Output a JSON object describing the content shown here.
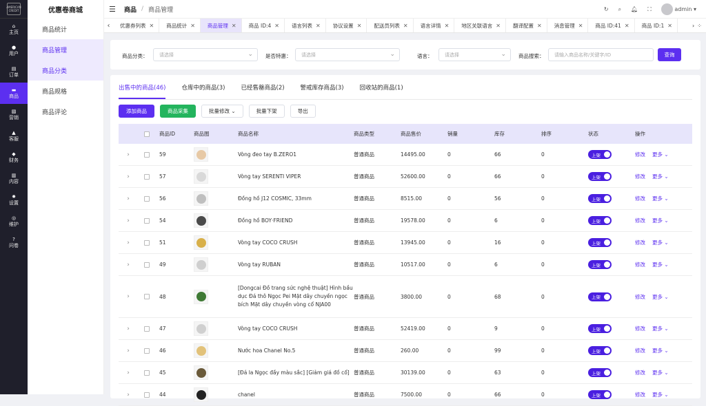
{
  "rail": {
    "logo_text": "AMERICAN CREDIT",
    "items": [
      {
        "icon": "⌂",
        "label": "主页"
      },
      {
        "icon": "●",
        "label": "用户"
      },
      {
        "icon": "▤",
        "label": "订单"
      },
      {
        "icon": "▬",
        "label": "商品"
      },
      {
        "icon": "▧",
        "label": "营销"
      },
      {
        "icon": "▲",
        "label": "客服"
      },
      {
        "icon": "◆",
        "label": "财务"
      },
      {
        "icon": "▥",
        "label": "内容"
      },
      {
        "icon": "✹",
        "label": "设置"
      },
      {
        "icon": "◎",
        "label": "维护"
      },
      {
        "icon": "?",
        "label": "问卷"
      }
    ]
  },
  "sub": {
    "brand": "优惠卷商城",
    "items": [
      {
        "label": "商品统计"
      },
      {
        "label": "商品管理"
      },
      {
        "label": "商品分类"
      },
      {
        "label": "商品规格"
      },
      {
        "label": "商品评论"
      }
    ]
  },
  "header": {
    "crumb": "商品",
    "crumb2": "商品管理",
    "user": "admin"
  },
  "tabs": [
    {
      "label": "优惠券列表"
    },
    {
      "label": "商品统计"
    },
    {
      "label": "商品管理"
    },
    {
      "label": "商品 ID:4"
    },
    {
      "label": "语言列表"
    },
    {
      "label": "协议设置"
    },
    {
      "label": "配送员列表"
    },
    {
      "label": "语言详情"
    },
    {
      "label": "地区关联语言"
    },
    {
      "label": "翻译配置"
    },
    {
      "label": "消息管理"
    },
    {
      "label": "商品 ID:41"
    },
    {
      "label": "商品 ID:1"
    }
  ],
  "filter": {
    "cat_label": "商品分类：",
    "cat_ph": "请选择",
    "special_label": "是否特惠：",
    "special_ph": "请选择",
    "lang_label": "语言：",
    "lang_ph": "请选择",
    "search_label": "商品搜索：",
    "search_ph": "请输入商品名称/关键字/ID",
    "query": "查询"
  },
  "status_tabs": [
    {
      "label": "出售中的商品(46)"
    },
    {
      "label": "仓库中的商品(3)"
    },
    {
      "label": "已经售罄商品(2)"
    },
    {
      "label": "警戒库存商品(3)"
    },
    {
      "label": "回收站的商品(1)"
    }
  ],
  "actions": {
    "add": "添加商品",
    "collect": "商品采集",
    "batch": "批量修改",
    "batch_off": "批量下架",
    "export": "导出"
  },
  "columns": {
    "id": "商品ID",
    "img": "商品图",
    "name": "商品名称",
    "type": "商品类型",
    "price": "商品售价",
    "sales": "销量",
    "stock": "库存",
    "sort": "排序",
    "status": "状态",
    "op": "操作"
  },
  "row_labels": {
    "on": "上架",
    "edit": "修改",
    "more": "更多"
  },
  "rows": [
    {
      "id": "59",
      "name": "Vòng đeo tay B.ZERO1",
      "type": "普通商品",
      "price": "14495.00",
      "sales": "0",
      "stock": "66",
      "sort": "0",
      "color": "#e7c9a5"
    },
    {
      "id": "57",
      "name": "Vòng tay SERENTI VIPER",
      "type": "普通商品",
      "price": "52600.00",
      "sales": "0",
      "stock": "66",
      "sort": "0",
      "color": "#d9d9d9"
    },
    {
      "id": "56",
      "name": "Đồng hồ J12 COSMIC, 33mm",
      "type": "普通商品",
      "price": "8515.00",
      "sales": "0",
      "stock": "56",
      "sort": "0",
      "color": "#bfbfbf"
    },
    {
      "id": "54",
      "name": "Đồng hồ BOY·FRIEND",
      "type": "普通商品",
      "price": "19578.00",
      "sales": "0",
      "stock": "6",
      "sort": "0",
      "color": "#4a4a4a"
    },
    {
      "id": "51",
      "name": "Vòng tay COCO CRUSH",
      "type": "普通商品",
      "price": "13945.00",
      "sales": "0",
      "stock": "16",
      "sort": "0",
      "color": "#d8b04a"
    },
    {
      "id": "49",
      "name": "Vòng tay RUBAN",
      "type": "普通商品",
      "price": "10517.00",
      "sales": "0",
      "stock": "6",
      "sort": "0",
      "color": "#cfcfcf"
    },
    {
      "id": "48",
      "name": "[Dongcai Đồ trang sức nghệ thuật] Hình bầu dục Đá thô Ngọc Pei Mặt dây chuyền ngọc bích Mặt dây chuyền vòng cổ NJA00",
      "type": "普通商品",
      "price": "3800.00",
      "sales": "0",
      "stock": "68",
      "sort": "0",
      "color": "#3f7a35"
    },
    {
      "id": "47",
      "name": "Vòng tay COCO CRUSH",
      "type": "普通商品",
      "price": "52419.00",
      "sales": "0",
      "stock": "9",
      "sort": "0",
      "color": "#d0d0d0"
    },
    {
      "id": "46",
      "name": "Nước hoa Chanel No.5",
      "type": "普通商品",
      "price": "260.00",
      "sales": "0",
      "stock": "99",
      "sort": "0",
      "color": "#e2c27a"
    },
    {
      "id": "45",
      "name": "[Đá la Ngọc đầy màu sắc] [Giảm giá đồ cổ]",
      "type": "普通商品",
      "price": "30139.00",
      "sales": "0",
      "stock": "63",
      "sort": "0",
      "color": "#6a5a3a"
    },
    {
      "id": "44",
      "name": "chanel",
      "type": "普通商品",
      "price": "7500.00",
      "sales": "0",
      "stock": "66",
      "sort": "0",
      "color": "#222222"
    }
  ]
}
